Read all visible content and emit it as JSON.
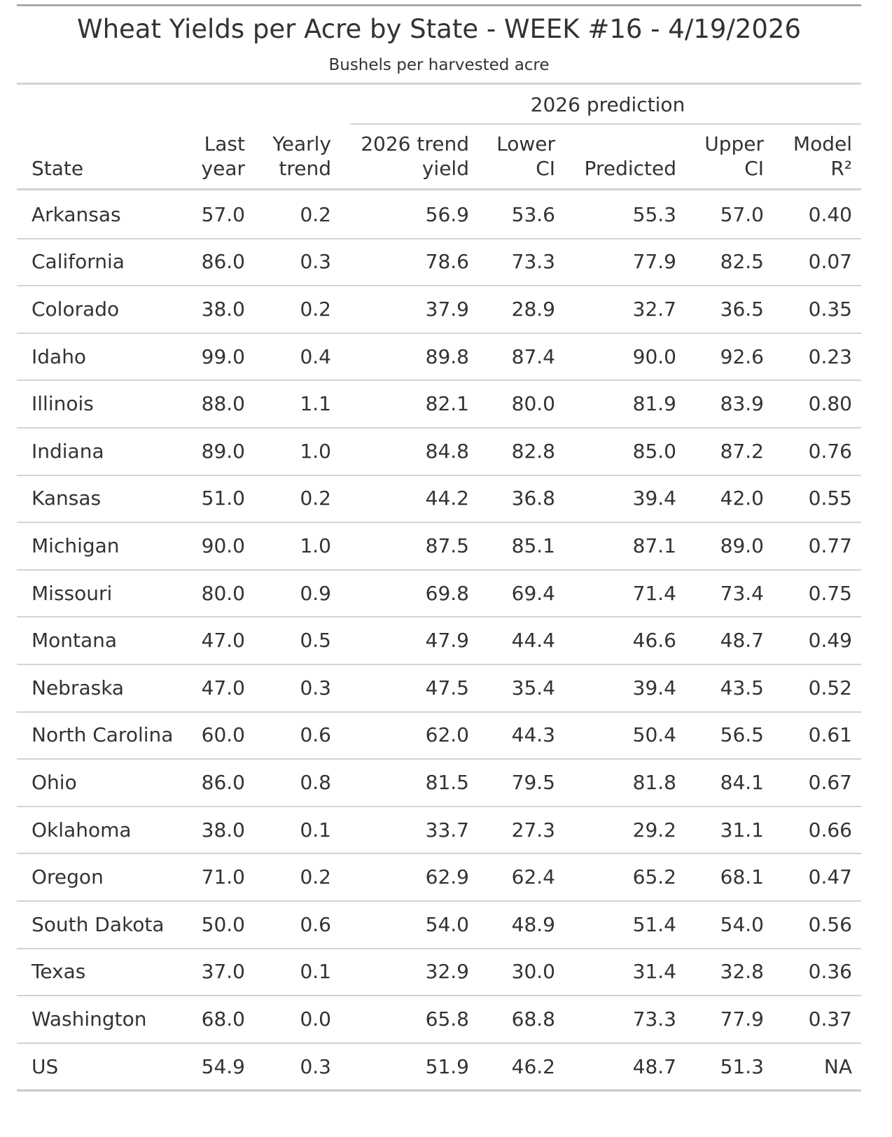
{
  "header": {
    "title": "Wheat Yields per Acre by State - WEEK #16 - 4/19/2026",
    "subtitle": "Bushels per harvested acre"
  },
  "table": {
    "spanner": "2026 prediction",
    "columns": [
      [
        "State"
      ],
      [
        "Last",
        "year"
      ],
      [
        "Yearly",
        "trend"
      ],
      [
        "2026 trend",
        "yield"
      ],
      [
        "Lower",
        "CI"
      ],
      [
        "Predicted"
      ],
      [
        "Upper",
        "CI"
      ],
      [
        "Model",
        "R²"
      ]
    ],
    "rows": [
      [
        "Arkansas",
        "57.0",
        "0.2",
        "56.9",
        "53.6",
        "55.3",
        "57.0",
        "0.40"
      ],
      [
        "California",
        "86.0",
        "0.3",
        "78.6",
        "73.3",
        "77.9",
        "82.5",
        "0.07"
      ],
      [
        "Colorado",
        "38.0",
        "0.2",
        "37.9",
        "28.9",
        "32.7",
        "36.5",
        "0.35"
      ],
      [
        "Idaho",
        "99.0",
        "0.4",
        "89.8",
        "87.4",
        "90.0",
        "92.6",
        "0.23"
      ],
      [
        "Illinois",
        "88.0",
        "1.1",
        "82.1",
        "80.0",
        "81.9",
        "83.9",
        "0.80"
      ],
      [
        "Indiana",
        "89.0",
        "1.0",
        "84.8",
        "82.8",
        "85.0",
        "87.2",
        "0.76"
      ],
      [
        "Kansas",
        "51.0",
        "0.2",
        "44.2",
        "36.8",
        "39.4",
        "42.0",
        "0.55"
      ],
      [
        "Michigan",
        "90.0",
        "1.0",
        "87.5",
        "85.1",
        "87.1",
        "89.0",
        "0.77"
      ],
      [
        "Missouri",
        "80.0",
        "0.9",
        "69.8",
        "69.4",
        "71.4",
        "73.4",
        "0.75"
      ],
      [
        "Montana",
        "47.0",
        "0.5",
        "47.9",
        "44.4",
        "46.6",
        "48.7",
        "0.49"
      ],
      [
        "Nebraska",
        "47.0",
        "0.3",
        "47.5",
        "35.4",
        "39.4",
        "43.5",
        "0.52"
      ],
      [
        "North Carolina",
        "60.0",
        "0.6",
        "62.0",
        "44.3",
        "50.4",
        "56.5",
        "0.61"
      ],
      [
        "Ohio",
        "86.0",
        "0.8",
        "81.5",
        "79.5",
        "81.8",
        "84.1",
        "0.67"
      ],
      [
        "Oklahoma",
        "38.0",
        "0.1",
        "33.7",
        "27.3",
        "29.2",
        "31.1",
        "0.66"
      ],
      [
        "Oregon",
        "71.0",
        "0.2",
        "62.9",
        "62.4",
        "65.2",
        "68.1",
        "0.47"
      ],
      [
        "South Dakota",
        "50.0",
        "0.6",
        "54.0",
        "48.9",
        "51.4",
        "54.0",
        "0.56"
      ],
      [
        "Texas",
        "37.0",
        "0.1",
        "32.9",
        "30.0",
        "31.4",
        "32.8",
        "0.36"
      ],
      [
        "Washington",
        "68.0",
        "0.0",
        "65.8",
        "68.8",
        "73.3",
        "77.9",
        "0.37"
      ],
      [
        "US",
        "54.9",
        "0.3",
        "51.9",
        "46.2",
        "48.7",
        "51.3",
        "NA"
      ]
    ]
  }
}
